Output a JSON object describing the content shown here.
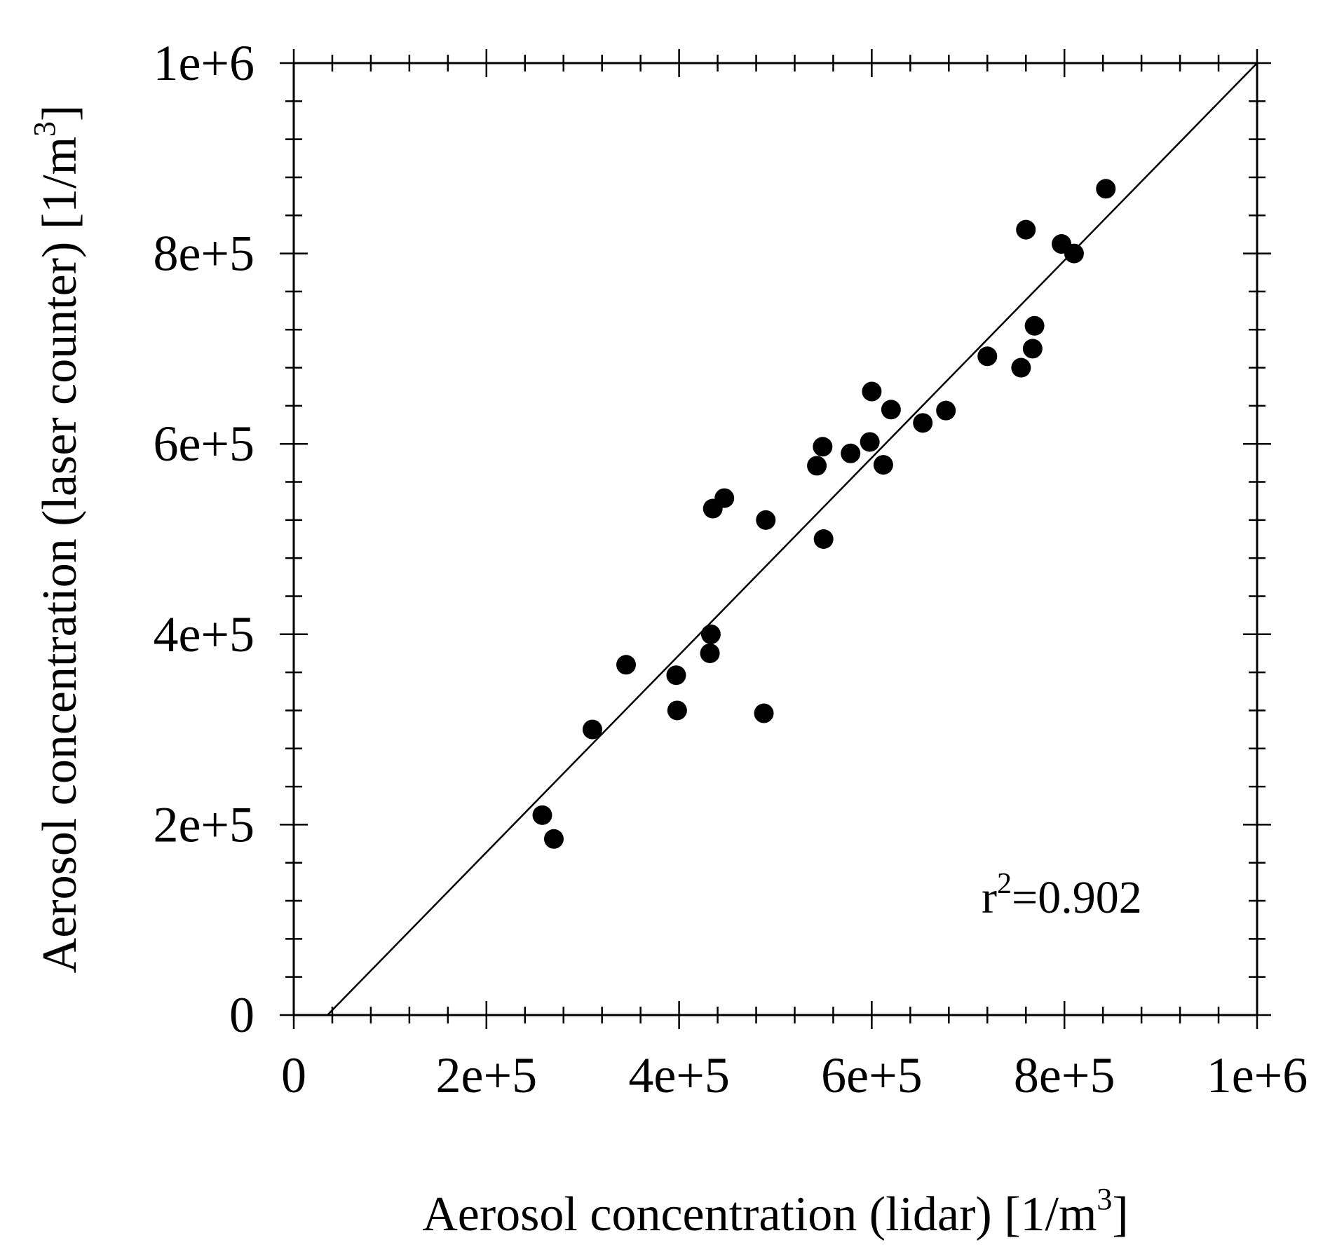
{
  "chart_data": {
    "type": "scatter",
    "title": "",
    "xlabel": "Aerosol concentration (lidar) [1/m",
    "xlabel_sup": "3",
    "xlabel_end": "]",
    "ylabel": "Aerosol concentration (laser counter) [1/m",
    "ylabel_sup": "3",
    "ylabel_end": "]",
    "xlim": [
      0,
      1000000
    ],
    "ylim": [
      0,
      1000000
    ],
    "xticks": [
      0,
      200000,
      400000,
      600000,
      800000,
      1000000
    ],
    "yticks": [
      0,
      200000,
      400000,
      600000,
      800000,
      1000000
    ],
    "xtick_labels": [
      "0",
      "2e+5",
      "4e+5",
      "6e+5",
      "8e+5",
      "1e+6"
    ],
    "ytick_labels": [
      "0",
      "2e+5",
      "4e+5",
      "6e+5",
      "8e+5",
      "1e+6"
    ],
    "minor_tick_step": 40000,
    "grid": false,
    "fit_line": {
      "x": [
        35000,
        1000000
      ],
      "y": [
        0,
        1000000
      ]
    },
    "annotation": {
      "prefix": "r",
      "sup": "2",
      "text": "=0.902"
    },
    "points": [
      {
        "x": 258000,
        "y": 210000
      },
      {
        "x": 270000,
        "y": 185000
      },
      {
        "x": 310000,
        "y": 300000
      },
      {
        "x": 345000,
        "y": 368000
      },
      {
        "x": 397000,
        "y": 357000
      },
      {
        "x": 398000,
        "y": 320000
      },
      {
        "x": 432000,
        "y": 380000
      },
      {
        "x": 433000,
        "y": 400000
      },
      {
        "x": 435000,
        "y": 532000
      },
      {
        "x": 447000,
        "y": 543000
      },
      {
        "x": 488000,
        "y": 317000
      },
      {
        "x": 490000,
        "y": 520000
      },
      {
        "x": 543000,
        "y": 577000
      },
      {
        "x": 549000,
        "y": 597000
      },
      {
        "x": 550000,
        "y": 500000
      },
      {
        "x": 578000,
        "y": 590000
      },
      {
        "x": 598000,
        "y": 602000
      },
      {
        "x": 600000,
        "y": 655000
      },
      {
        "x": 612000,
        "y": 578000
      },
      {
        "x": 620000,
        "y": 636000
      },
      {
        "x": 653000,
        "y": 622000
      },
      {
        "x": 677000,
        "y": 635000
      },
      {
        "x": 720000,
        "y": 692000
      },
      {
        "x": 755000,
        "y": 680000
      },
      {
        "x": 760000,
        "y": 825000
      },
      {
        "x": 767000,
        "y": 700000
      },
      {
        "x": 769000,
        "y": 724000
      },
      {
        "x": 797000,
        "y": 810000
      },
      {
        "x": 810000,
        "y": 800000
      },
      {
        "x": 843000,
        "y": 868000
      }
    ]
  }
}
